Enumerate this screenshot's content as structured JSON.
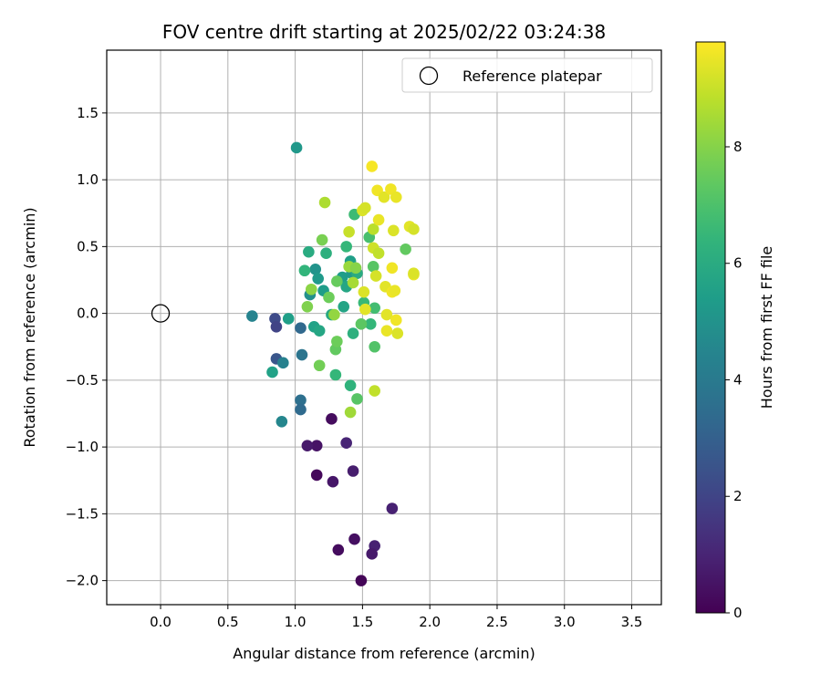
{
  "chart_data": {
    "type": "scatter",
    "title": "FOV centre drift starting at 2025/02/22 03:24:38",
    "xlabel": "Angular distance from reference (arcmin)",
    "ylabel": "Rotation from reference (arcmin)",
    "xlim": [
      -0.4,
      3.72
    ],
    "ylim": [
      -2.18,
      1.97
    ],
    "x_ticks": [
      0.0,
      0.5,
      1.0,
      1.5,
      2.0,
      2.5,
      3.0,
      3.5
    ],
    "x_tick_labels": [
      "0.0",
      "0.5",
      "1.0",
      "1.5",
      "2.0",
      "2.5",
      "3.0",
      "3.5"
    ],
    "y_ticks": [
      -2.0,
      -1.5,
      -1.0,
      -0.5,
      0.0,
      0.5,
      1.0,
      1.5
    ],
    "y_tick_labels": [
      "−2.0",
      "−1.5",
      "−1.0",
      "−0.5",
      "0.0",
      "0.5",
      "1.0",
      "1.5"
    ],
    "grid": true,
    "legend": {
      "placement": "top-right",
      "entries": [
        "Reference platepar"
      ]
    },
    "reference_point": {
      "x": 0.0,
      "y": 0.0,
      "label": "Reference platepar",
      "marker": "open-circle"
    },
    "colorbar": {
      "label": "Hours from first FF file",
      "colormap": "viridis",
      "range": [
        0,
        9.8
      ],
      "ticks": [
        0,
        2,
        4,
        6,
        8
      ],
      "tick_labels": [
        "0",
        "2",
        "4",
        "6",
        "8"
      ]
    },
    "points": [
      {
        "x": 1.27,
        "y": -0.79,
        "c": 0.3
      },
      {
        "x": 1.16,
        "y": -0.99,
        "c": 0.5
      },
      {
        "x": 1.09,
        "y": -0.99,
        "c": 0.7
      },
      {
        "x": 1.16,
        "y": -1.21,
        "c": 0.2
      },
      {
        "x": 1.28,
        "y": -1.26,
        "c": 0.6
      },
      {
        "x": 1.38,
        "y": -0.97,
        "c": 1.0
      },
      {
        "x": 1.43,
        "y": -1.18,
        "c": 0.8
      },
      {
        "x": 1.72,
        "y": -1.46,
        "c": 0.9
      },
      {
        "x": 1.44,
        "y": -1.69,
        "c": 0.4
      },
      {
        "x": 1.32,
        "y": -1.77,
        "c": 0.3
      },
      {
        "x": 1.59,
        "y": -1.74,
        "c": 0.9
      },
      {
        "x": 1.57,
        "y": -1.8,
        "c": 0.7
      },
      {
        "x": 1.49,
        "y": -2.0,
        "c": 0.1
      },
      {
        "x": 0.85,
        "y": -0.04,
        "c": 2.2
      },
      {
        "x": 0.86,
        "y": -0.1,
        "c": 2.0
      },
      {
        "x": 0.86,
        "y": -0.34,
        "c": 2.6
      },
      {
        "x": 1.04,
        "y": -0.11,
        "c": 3.3
      },
      {
        "x": 1.05,
        "y": -0.31,
        "c": 3.8
      },
      {
        "x": 1.04,
        "y": -0.65,
        "c": 3.6
      },
      {
        "x": 1.04,
        "y": -0.72,
        "c": 3.4
      },
      {
        "x": 0.68,
        "y": -0.02,
        "c": 4.4
      },
      {
        "x": 0.91,
        "y": -0.37,
        "c": 4.3
      },
      {
        "x": 0.9,
        "y": -0.81,
        "c": 4.5
      },
      {
        "x": 0.83,
        "y": -0.44,
        "c": 5.6
      },
      {
        "x": 0.95,
        "y": -0.04,
        "c": 5.5
      },
      {
        "x": 1.01,
        "y": 1.24,
        "c": 5.2
      },
      {
        "x": 1.15,
        "y": 0.33,
        "c": 5.0
      },
      {
        "x": 1.17,
        "y": 0.26,
        "c": 5.3
      },
      {
        "x": 1.11,
        "y": 0.14,
        "c": 4.9
      },
      {
        "x": 1.21,
        "y": 0.17,
        "c": 5.4
      },
      {
        "x": 1.14,
        "y": -0.1,
        "c": 5.6
      },
      {
        "x": 1.18,
        "y": -0.13,
        "c": 5.8
      },
      {
        "x": 1.1,
        "y": 0.46,
        "c": 6.0
      },
      {
        "x": 1.23,
        "y": 0.45,
        "c": 6.2
      },
      {
        "x": 1.07,
        "y": 0.32,
        "c": 6.4
      },
      {
        "x": 1.27,
        "y": -0.01,
        "c": 5.9
      },
      {
        "x": 1.35,
        "y": 0.27,
        "c": 5.4
      },
      {
        "x": 1.41,
        "y": 0.39,
        "c": 5.5
      },
      {
        "x": 1.38,
        "y": 0.2,
        "c": 5.8
      },
      {
        "x": 1.36,
        "y": 0.05,
        "c": 5.7
      },
      {
        "x": 1.43,
        "y": -0.15,
        "c": 6.2
      },
      {
        "x": 1.42,
        "y": 0.3,
        "c": 5.3
      },
      {
        "x": 1.46,
        "y": 0.3,
        "c": 6.0
      },
      {
        "x": 1.38,
        "y": 0.5,
        "c": 6.5
      },
      {
        "x": 1.44,
        "y": 0.74,
        "c": 6.7
      },
      {
        "x": 1.55,
        "y": 0.57,
        "c": 6.9
      },
      {
        "x": 1.56,
        "y": -0.08,
        "c": 6.5
      },
      {
        "x": 1.51,
        "y": 0.08,
        "c": 6.6
      },
      {
        "x": 1.41,
        "y": -0.54,
        "c": 6.3
      },
      {
        "x": 1.3,
        "y": -0.46,
        "c": 6.5
      },
      {
        "x": 1.59,
        "y": 0.04,
        "c": 6.8
      },
      {
        "x": 1.58,
        "y": 0.35,
        "c": 7.2
      },
      {
        "x": 1.59,
        "y": -0.25,
        "c": 7.1
      },
      {
        "x": 1.82,
        "y": 0.48,
        "c": 7.4
      },
      {
        "x": 1.46,
        "y": -0.64,
        "c": 7.2
      },
      {
        "x": 1.49,
        "y": -0.08,
        "c": 7.3
      },
      {
        "x": 1.31,
        "y": 0.24,
        "c": 7.5
      },
      {
        "x": 1.25,
        "y": 0.12,
        "c": 7.6
      },
      {
        "x": 1.3,
        "y": -0.27,
        "c": 7.4
      },
      {
        "x": 1.31,
        "y": -0.21,
        "c": 7.6
      },
      {
        "x": 1.18,
        "y": -0.39,
        "c": 7.7
      },
      {
        "x": 1.09,
        "y": 0.05,
        "c": 7.9
      },
      {
        "x": 1.12,
        "y": 0.18,
        "c": 8.1
      },
      {
        "x": 1.2,
        "y": 0.55,
        "c": 7.8
      },
      {
        "x": 1.29,
        "y": -0.01,
        "c": 8.2
      },
      {
        "x": 1.41,
        "y": -0.74,
        "c": 8.4
      },
      {
        "x": 1.4,
        "y": 0.35,
        "c": 8.3
      },
      {
        "x": 1.43,
        "y": 0.23,
        "c": 8.5
      },
      {
        "x": 1.45,
        "y": 0.34,
        "c": 8.0
      },
      {
        "x": 1.22,
        "y": 0.83,
        "c": 8.6
      },
      {
        "x": 1.59,
        "y": -0.58,
        "c": 8.9
      },
      {
        "x": 1.58,
        "y": 0.63,
        "c": 8.8
      },
      {
        "x": 1.4,
        "y": 0.61,
        "c": 9.0
      },
      {
        "x": 1.58,
        "y": 0.49,
        "c": 9.1
      },
      {
        "x": 1.62,
        "y": 0.45,
        "c": 8.9
      },
      {
        "x": 1.6,
        "y": 0.28,
        "c": 9.2
      },
      {
        "x": 1.51,
        "y": 0.16,
        "c": 9.3
      },
      {
        "x": 1.52,
        "y": 0.03,
        "c": 9.4
      },
      {
        "x": 1.5,
        "y": 0.77,
        "c": 9.3
      },
      {
        "x": 1.52,
        "y": 0.79,
        "c": 9.2
      },
      {
        "x": 1.62,
        "y": 0.7,
        "c": 9.5
      },
      {
        "x": 1.61,
        "y": 0.92,
        "c": 9.6
      },
      {
        "x": 1.57,
        "y": 1.1,
        "c": 9.7
      },
      {
        "x": 1.66,
        "y": 0.87,
        "c": 9.4
      },
      {
        "x": 1.71,
        "y": 0.93,
        "c": 9.6
      },
      {
        "x": 1.75,
        "y": 0.87,
        "c": 9.5
      },
      {
        "x": 1.73,
        "y": 0.62,
        "c": 9.3
      },
      {
        "x": 1.85,
        "y": 0.65,
        "c": 9.4
      },
      {
        "x": 1.88,
        "y": 0.63,
        "c": 9.2
      },
      {
        "x": 1.72,
        "y": 0.34,
        "c": 9.6
      },
      {
        "x": 1.88,
        "y": 0.29,
        "c": 9.5
      },
      {
        "x": 1.88,
        "y": 0.3,
        "c": 9.3
      },
      {
        "x": 1.67,
        "y": 0.2,
        "c": 9.4
      },
      {
        "x": 1.72,
        "y": 0.16,
        "c": 9.6
      },
      {
        "x": 1.74,
        "y": 0.17,
        "c": 9.5
      },
      {
        "x": 1.68,
        "y": -0.01,
        "c": 9.4
      },
      {
        "x": 1.75,
        "y": -0.05,
        "c": 9.6
      },
      {
        "x": 1.68,
        "y": -0.13,
        "c": 9.5
      },
      {
        "x": 1.76,
        "y": -0.15,
        "c": 9.3
      }
    ]
  }
}
